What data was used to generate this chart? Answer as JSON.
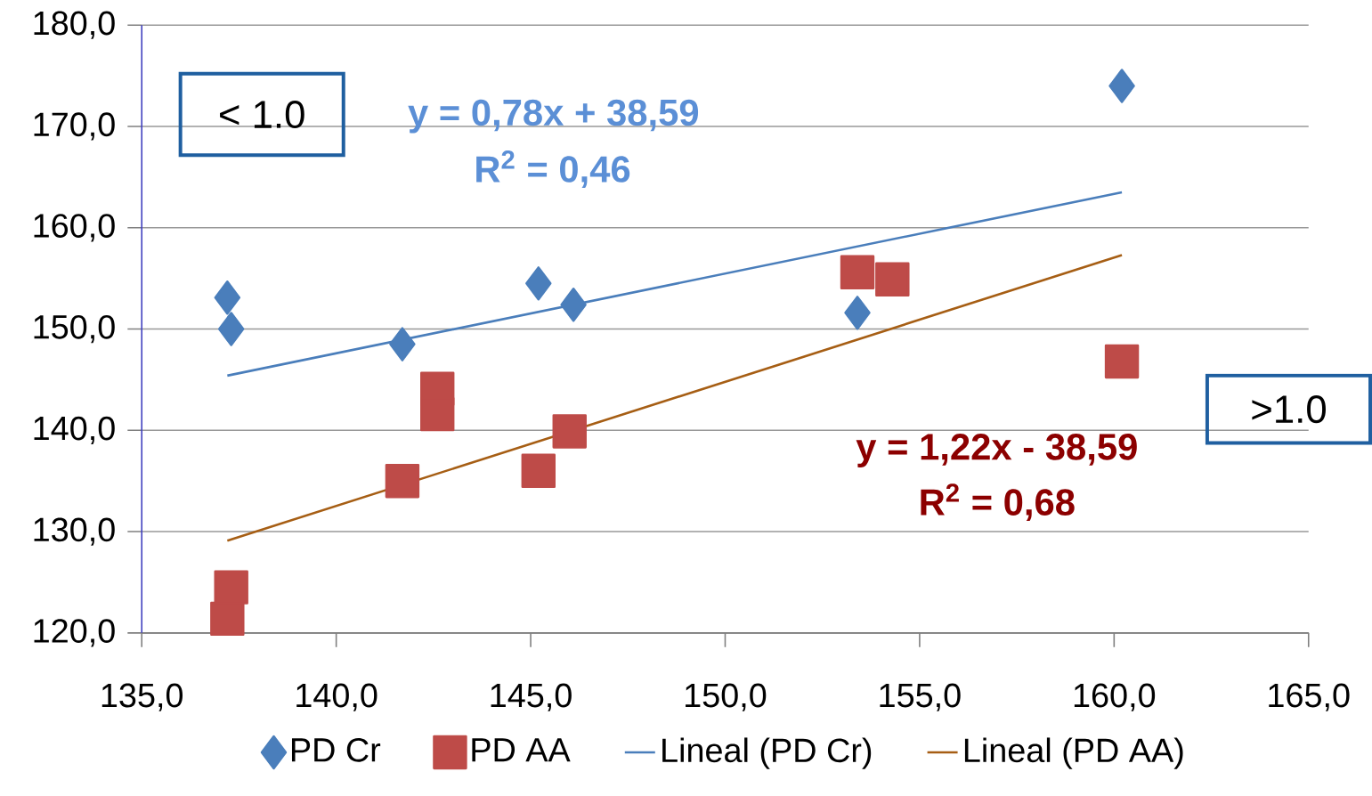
{
  "chart_data": {
    "type": "scatter",
    "grid": "y",
    "legend": "bottom",
    "xlim": [
      135,
      165
    ],
    "ylim": [
      120,
      180
    ],
    "xticks": [
      {
        "value": 135,
        "label": "135,0"
      },
      {
        "value": 140,
        "label": "140,0"
      },
      {
        "value": 145,
        "label": "145,0"
      },
      {
        "value": 150,
        "label": "150,0"
      },
      {
        "value": 155,
        "label": "155,0"
      },
      {
        "value": 160,
        "label": "160,0"
      },
      {
        "value": 165,
        "label": "165,0"
      }
    ],
    "yticks": [
      {
        "value": 120,
        "label": "120,0"
      },
      {
        "value": 130,
        "label": "130,0"
      },
      {
        "value": 140,
        "label": "140,0"
      },
      {
        "value": 150,
        "label": "150,0"
      },
      {
        "value": 160,
        "label": "160,0"
      },
      {
        "value": 170,
        "label": "170,0"
      },
      {
        "value": 180,
        "label": "180,0"
      }
    ],
    "series": [
      {
        "name": "PD Cr",
        "color": "#4a7ebb",
        "marker": "diamond",
        "x": [
          137.2,
          137.3,
          141.7,
          142.6,
          145.2,
          146.1,
          153.4,
          154.3,
          160.2
        ],
        "values": [
          153.1,
          150.0,
          148.5,
          null,
          154.5,
          152.4,
          151.6,
          null,
          174.0
        ]
      },
      {
        "name": "PD AA",
        "color": "#be4b48",
        "marker": "square",
        "x": [
          137.2,
          137.3,
          141.7,
          142.6,
          142.6,
          145.2,
          146.0,
          153.4,
          154.3,
          160.2
        ],
        "values": [
          121.4,
          124.5,
          135.0,
          144.1,
          141.6,
          136.0,
          139.9,
          155.6,
          154.9,
          146.8
        ]
      },
      {
        "name": "Lineal (PD Cr)",
        "type": "line",
        "color": "#4a7ebb",
        "marker": "none",
        "x": [
          137.2,
          160.2
        ],
        "values": [
          145.4,
          163.5
        ]
      },
      {
        "name": "Lineal (PD AA)",
        "type": "line",
        "color": "#a65e14",
        "marker": "none",
        "x": [
          137.2,
          160.2
        ],
        "values": [
          129.1,
          157.3
        ]
      }
    ],
    "annotations": [
      "y = 0,78x + 38,59",
      "R$^{2}$ = 0,46",
      "y = 1,22x - 38,59",
      "R$^{2}$ = 0,68",
      "< 1.0",
      ">1.0"
    ]
  }
}
